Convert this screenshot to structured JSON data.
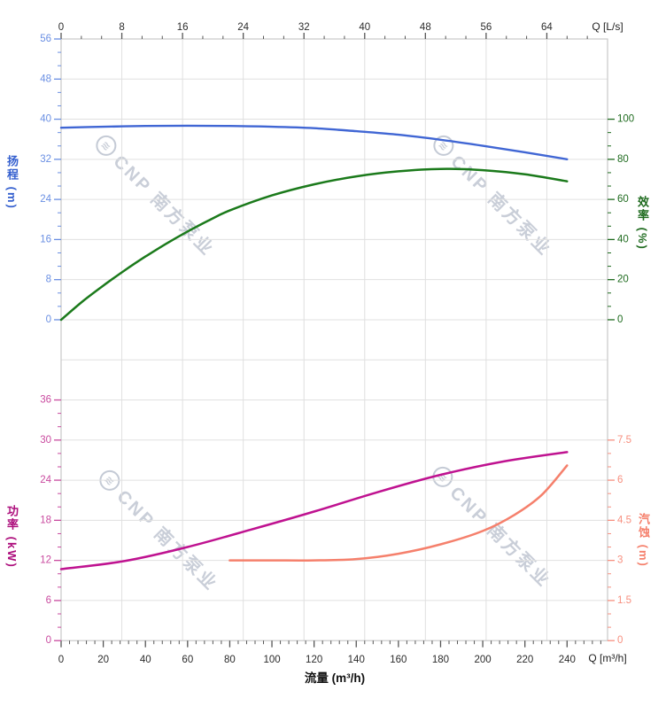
{
  "watermark": {
    "logo_glyph": "≋",
    "text": "CNP 南方泵业"
  },
  "palette": {
    "grid": "#e0e0e0",
    "frame": "#c9c9c9",
    "x_tick": "#555555",
    "x_tick_label": "#2b2b2b",
    "head_curve": "#4066d4",
    "head_tick": "#6a8fe3",
    "head_title": "#3560cf",
    "eff_curve": "#1b7a1b",
    "eff_tick": "#1f6b1f",
    "power_curve": "#bf1290",
    "power_tick": "#c94a9f",
    "power_title": "#ad0e7c",
    "npsh_curve": "#f5806c",
    "npsh_tick": "#f78f7f"
  },
  "chart_data": {
    "type": "line",
    "title": "",
    "x_axes": {
      "top": {
        "unit_label": "Q [L/s]",
        "min": 0,
        "max": 72,
        "majors": [
          0,
          8,
          16,
          24,
          32,
          40,
          48,
          56,
          64
        ],
        "minor_step": 2.6667
      },
      "bottom": {
        "unit_label": "Q [m³/h]",
        "title": "流量 (m³/h)",
        "min": 0,
        "max": 259.2,
        "majors": [
          0,
          20,
          40,
          60,
          80,
          100,
          120,
          140,
          160,
          180,
          200,
          220,
          240
        ],
        "minor_step": 4
      }
    },
    "charts": [
      {
        "name": "head-and-efficiency",
        "left_axis": {
          "title": "扬程 (m)",
          "min": 0,
          "max": 56,
          "majors": [
            0,
            8,
            16,
            24,
            32,
            40,
            48,
            56
          ],
          "minor_step": 2.6667
        },
        "right_axis": {
          "title": "效率 (%)",
          "min": 0,
          "max": 100,
          "majors": [
            0,
            20,
            40,
            60,
            80,
            100
          ],
          "minor_step": 6.6667
        },
        "series": [
          {
            "name": "head",
            "axis": "head",
            "width": 2.4,
            "points": [
              [
                0,
                38.3
              ],
              [
                20,
                38.5
              ],
              [
                40,
                38.65
              ],
              [
                60,
                38.7
              ],
              [
                80,
                38.65
              ],
              [
                100,
                38.5
              ],
              [
                120,
                38.2
              ],
              [
                140,
                37.6
              ],
              [
                160,
                36.9
              ],
              [
                180,
                35.9
              ],
              [
                200,
                34.7
              ],
              [
                220,
                33.4
              ],
              [
                240,
                32.0
              ]
            ]
          },
          {
            "name": "efficiency",
            "axis": "eff",
            "width": 2.5,
            "points": [
              [
                0,
                0
              ],
              [
                10,
                9
              ],
              [
                20,
                17
              ],
              [
                30,
                24.5
              ],
              [
                40,
                31.5
              ],
              [
                50,
                38
              ],
              [
                60,
                44
              ],
              [
                70,
                49.5
              ],
              [
                80,
                54.5
              ],
              [
                100,
                62
              ],
              [
                120,
                67.5
              ],
              [
                140,
                71.5
              ],
              [
                160,
                74
              ],
              [
                180,
                75.2
              ],
              [
                200,
                74.6
              ],
              [
                220,
                72.5
              ],
              [
                240,
                69
              ]
            ]
          }
        ]
      },
      {
        "name": "power-and-npsh",
        "left_axis": {
          "title": "功率 (kW)",
          "min": 0,
          "max": 36,
          "majors": [
            0,
            6,
            12,
            18,
            24,
            30,
            36
          ],
          "minor_step": 2
        },
        "right_axis": {
          "title": "汽蚀 (m)",
          "min": 0,
          "max": 7.5,
          "majors": [
            0,
            1.5,
            3,
            4.5,
            6,
            7.5
          ],
          "minor_step": 0.5
        },
        "series": [
          {
            "name": "power",
            "axis": "power",
            "width": 2.5,
            "points": [
              [
                0,
                10.7
              ],
              [
                30,
                11.9
              ],
              [
                60,
                14.0
              ],
              [
                90,
                16.6
              ],
              [
                120,
                19.3
              ],
              [
                150,
                22.2
              ],
              [
                180,
                24.8
              ],
              [
                210,
                26.8
              ],
              [
                240,
                28.2
              ]
            ]
          },
          {
            "name": "npsh",
            "axis": "npsh",
            "width": 2.5,
            "points": [
              [
                80,
                3.0
              ],
              [
                100,
                3.0
              ],
              [
                120,
                3.0
              ],
              [
                140,
                3.05
              ],
              [
                160,
                3.25
              ],
              [
                180,
                3.6
              ],
              [
                200,
                4.1
              ],
              [
                215,
                4.7
              ],
              [
                228,
                5.45
              ],
              [
                240,
                6.55
              ]
            ]
          }
        ]
      }
    ]
  }
}
